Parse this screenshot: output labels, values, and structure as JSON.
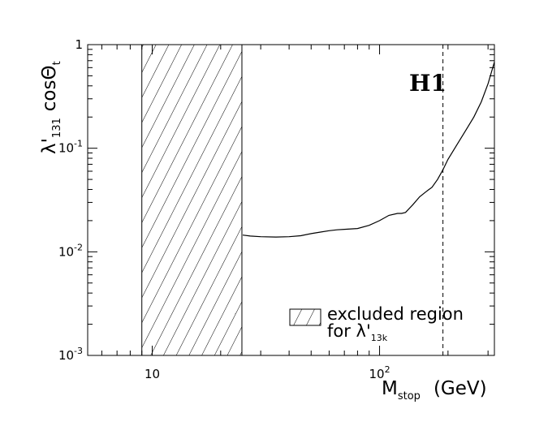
{
  "chart_data": {
    "type": "line",
    "xscale": "log",
    "yscale": "log",
    "xlim": [
      5.2,
      320
    ],
    "ylim": [
      0.001,
      1
    ],
    "xlabel": {
      "main": "M",
      "sub": "stop",
      "unit": "(GeV)"
    },
    "ylabel": {
      "main": "λ'",
      "sub": "131",
      "rest": "cos",
      "theta": "Θ",
      "theta_sub": "t"
    },
    "x_ticks": [
      {
        "value": 10,
        "base": "10",
        "exp": ""
      },
      {
        "value": 100,
        "base": "10",
        "exp": "2"
      }
    ],
    "y_ticks": [
      {
        "value": 1,
        "base": "1",
        "exp": ""
      },
      {
        "value": 0.1,
        "base": "10",
        "exp": "-1"
      },
      {
        "value": 0.01,
        "base": "10",
        "exp": "-2"
      },
      {
        "value": 0.001,
        "base": "10",
        "exp": "-3"
      }
    ],
    "series": [
      {
        "x": [
          25,
          27,
          30,
          35,
          40,
          45,
          50,
          55,
          60,
          65,
          70,
          80,
          90,
          100,
          110,
          120,
          125,
          130,
          140,
          150,
          160,
          165,
          170,
          180,
          190,
          200,
          220,
          240,
          260,
          280,
          300,
          320
        ],
        "y": [
          0.0145,
          0.0142,
          0.014,
          0.0139,
          0.014,
          0.0143,
          0.015,
          0.0155,
          0.016,
          0.0163,
          0.0165,
          0.0168,
          0.018,
          0.02,
          0.0225,
          0.0235,
          0.0235,
          0.024,
          0.0285,
          0.034,
          0.038,
          0.04,
          0.042,
          0.05,
          0.062,
          0.078,
          0.11,
          0.15,
          0.2,
          0.28,
          0.42,
          0.68
        ]
      }
    ],
    "excluded_region": {
      "x_min": 9.0,
      "x_max": 24.8,
      "pattern": "diagonal hatch"
    },
    "vertical_line": {
      "x": 190,
      "style": "dashed"
    },
    "legend": {
      "line1": "excluded region",
      "line2_prefix": "for λ'",
      "line2_sub": "13k"
    },
    "badge": "H1",
    "colors": {
      "line": "#000000",
      "background": "#ffffff"
    }
  }
}
